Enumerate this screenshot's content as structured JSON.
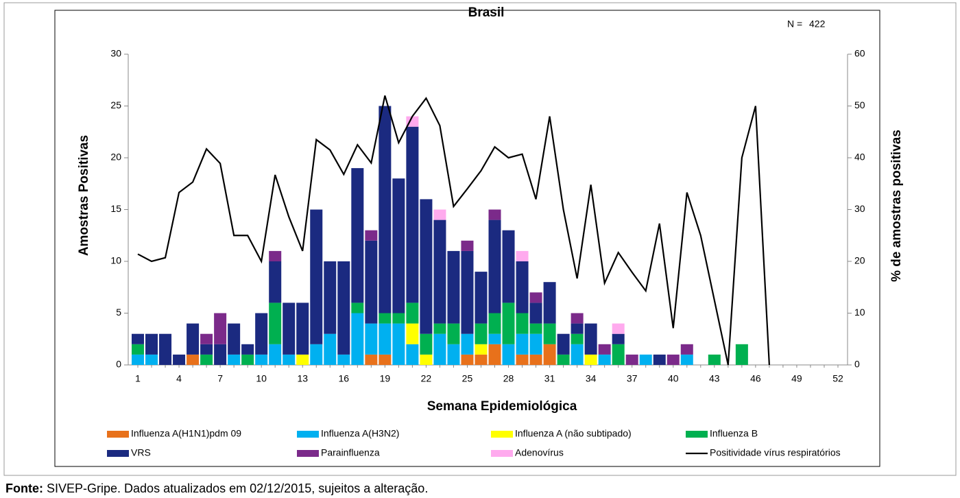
{
  "chart_data": {
    "type": "bar",
    "stacked": true,
    "title": "Brasil",
    "n_label": "N =",
    "n_value": 422,
    "x_label": "Semana Epidemiológica",
    "y_label": "Amostras Positivas",
    "y2_label": "% de amostras positivas",
    "source_label": "Fonte:",
    "source_text": "SIVEP-Gripe. Dados atualizados em 02/12/2015, sujeitos a alteração.",
    "categories": [
      "1",
      null,
      null,
      "4",
      null,
      null,
      "7",
      null,
      null,
      "10",
      null,
      null,
      "13",
      null,
      null,
      "16",
      null,
      null,
      "19",
      null,
      null,
      "22",
      null,
      null,
      "25",
      null,
      null,
      "28",
      null,
      null,
      "31",
      null,
      null,
      "34",
      null,
      null,
      "37",
      null,
      null,
      "40",
      null,
      null,
      "43",
      null,
      null,
      "46",
      null,
      null,
      "49",
      null,
      null,
      "52"
    ],
    "ylim": [
      0,
      30
    ],
    "yticks": [
      0,
      5,
      10,
      15,
      20,
      25,
      30
    ],
    "y2lim": [
      0,
      60
    ],
    "y2ticks": [
      0,
      10,
      20,
      30,
      40,
      50,
      60
    ],
    "series": [
      {
        "name": "Influenza A(H1N1)pdm 09",
        "color": "#e8711b",
        "values": [
          0,
          0,
          0,
          0,
          1,
          0,
          0,
          0,
          0,
          0,
          0,
          0,
          0,
          0,
          0,
          0,
          0,
          1,
          1,
          0,
          0,
          0,
          0,
          0,
          1,
          1,
          2,
          0,
          1,
          1,
          2,
          0,
          0,
          0,
          0,
          0,
          0,
          0,
          0,
          0,
          0,
          0,
          0,
          0,
          0,
          0,
          0,
          0,
          0,
          0,
          0,
          0
        ]
      },
      {
        "name": "Influenza A(H3N2)",
        "color": "#00b0f0",
        "values": [
          1,
          1,
          0,
          0,
          0,
          0,
          0,
          1,
          0,
          1,
          2,
          1,
          0,
          2,
          3,
          1,
          5,
          3,
          3,
          4,
          2,
          0,
          3,
          2,
          2,
          0,
          1,
          2,
          2,
          2,
          0,
          0,
          2,
          0,
          1,
          0,
          0,
          1,
          0,
          0,
          1,
          0,
          0,
          0,
          0,
          0,
          0,
          0,
          0,
          0,
          0,
          0
        ]
      },
      {
        "name": "Influenza A (não subtipado)",
        "color": "#ffff00",
        "values": [
          0,
          0,
          0,
          0,
          0,
          0,
          0,
          0,
          0,
          0,
          0,
          0,
          1,
          0,
          0,
          0,
          0,
          0,
          0,
          0,
          2,
          1,
          0,
          0,
          0,
          1,
          0,
          0,
          0,
          0,
          0,
          0,
          0,
          1,
          0,
          0,
          0,
          0,
          0,
          0,
          0,
          0,
          0,
          0,
          0,
          0,
          0,
          0,
          0,
          0,
          0,
          0
        ]
      },
      {
        "name": "Influenza B",
        "color": "#00b050",
        "values": [
          1,
          0,
          0,
          0,
          0,
          1,
          0,
          0,
          1,
          0,
          4,
          0,
          0,
          0,
          0,
          0,
          1,
          0,
          1,
          1,
          2,
          2,
          1,
          2,
          0,
          2,
          2,
          4,
          2,
          1,
          2,
          1,
          1,
          0,
          0,
          2,
          0,
          0,
          0,
          0,
          0,
          0,
          1,
          0,
          2,
          0,
          0,
          0,
          0,
          0,
          0,
          0
        ]
      },
      {
        "name": "VRS",
        "color": "#1b2a80",
        "values": [
          1,
          2,
          3,
          1,
          3,
          1,
          2,
          3,
          1,
          4,
          4,
          5,
          5,
          13,
          7,
          9,
          13,
          8,
          20,
          13,
          17,
          13,
          10,
          7,
          8,
          5,
          9,
          7,
          5,
          2,
          4,
          2,
          1,
          3,
          0,
          1,
          0,
          0,
          1,
          0,
          0,
          0,
          0,
          0,
          0,
          0,
          0,
          0,
          0,
          0,
          0,
          0
        ]
      },
      {
        "name": "Parainfluenza",
        "color": "#7b2a8a",
        "values": [
          0,
          0,
          0,
          0,
          0,
          1,
          3,
          0,
          0,
          0,
          1,
          0,
          0,
          0,
          0,
          0,
          0,
          1,
          0,
          0,
          0,
          0,
          0,
          0,
          1,
          0,
          1,
          0,
          0,
          1,
          0,
          0,
          1,
          0,
          1,
          0,
          1,
          0,
          0,
          1,
          1,
          0,
          0,
          0,
          0,
          0,
          0,
          0,
          0,
          0,
          0,
          0
        ]
      },
      {
        "name": "Adenovírus",
        "color": "#ffaaee",
        "values": [
          0,
          0,
          0,
          0,
          0,
          0,
          0,
          0,
          0,
          0,
          0,
          0,
          0,
          0,
          0,
          0,
          0,
          0,
          0,
          0,
          1,
          0,
          1,
          0,
          0,
          0,
          0,
          0,
          1,
          0,
          0,
          0,
          0,
          0,
          0,
          1,
          0,
          0,
          0,
          0,
          0,
          0,
          0,
          0,
          0,
          0,
          0,
          0,
          0,
          0,
          0,
          0
        ]
      },
      {
        "name": "Positividade vírus respiratórios",
        "color": "#000000",
        "type": "line",
        "axis": "y2",
        "values": [
          21.4,
          20,
          20.7,
          33.3,
          35.3,
          41.7,
          38.9,
          25,
          25,
          20,
          36.7,
          28.6,
          22,
          43.5,
          41.5,
          36.8,
          42.5,
          39,
          52,
          42.9,
          48,
          51.5,
          46.2,
          30.6,
          34,
          37.5,
          42.1,
          40,
          40.7,
          32,
          48,
          30,
          16.7,
          34.8,
          15.8,
          21.7,
          17.9,
          14.3,
          27.3,
          7.1,
          33.3,
          25,
          12.5,
          0,
          40,
          50,
          0,
          null,
          null,
          null,
          null,
          null
        ]
      }
    ]
  }
}
